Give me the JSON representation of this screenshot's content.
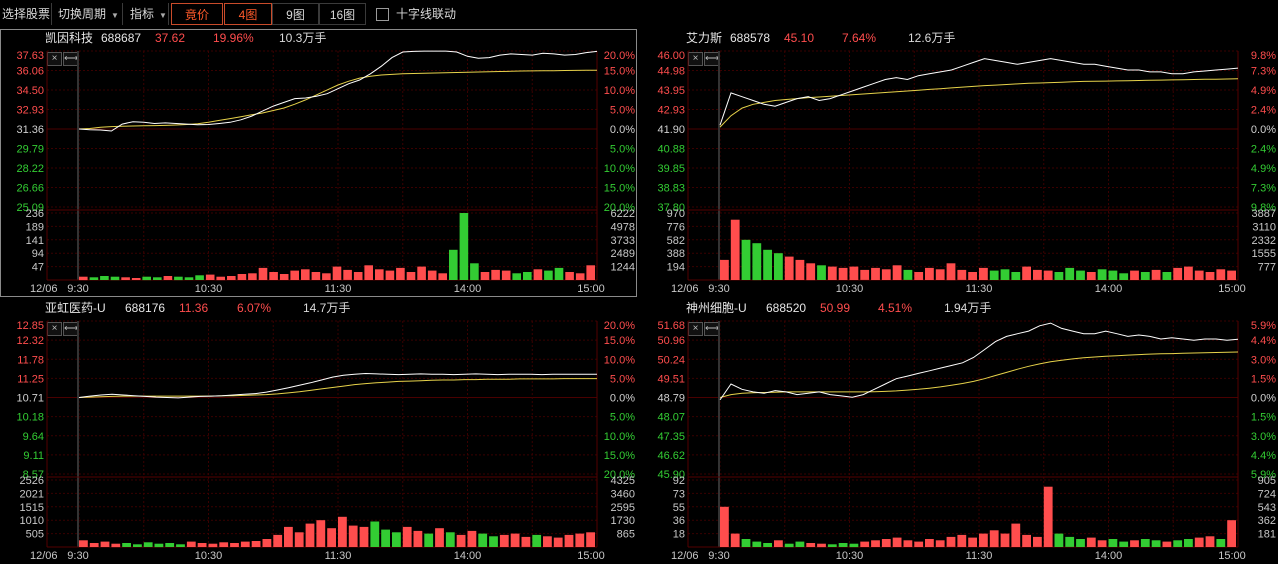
{
  "toolbar": {
    "select_stock": "选择股票",
    "switch_period": "切换周期",
    "indicator": "指标",
    "auction": "竟价",
    "grid4": "4图",
    "grid9": "9图",
    "grid16": "16图",
    "crosshair": "十字线联动"
  },
  "colors": {
    "up": "#ff4d4d",
    "down": "#33cc33",
    "price_line": "#ffffff",
    "avg_line": "#e6d24a",
    "grid": "#3a0000"
  },
  "panels": [
    {
      "name": "凯因科技",
      "code": "688687",
      "price": "37.62",
      "change": "19.96%",
      "volume": "10.3万手",
      "price_ticks": [
        "37.63",
        "36.06",
        "34.50",
        "32.93",
        "31.36",
        "29.79",
        "28.22",
        "26.66",
        "25.09"
      ],
      "pct_ticks": [
        "20.0%",
        "15.0%",
        "10.0%",
        "5.0%",
        "0.0%",
        "5.0%",
        "10.0%",
        "15.0%",
        "20.0%"
      ],
      "vol_left": [
        "236",
        "189",
        "141",
        "94",
        "47"
      ],
      "vol_right": [
        "6222",
        "4978",
        "3733",
        "2489",
        "1244"
      ],
      "date": "12/06",
      "times": [
        "9:30",
        "10:30",
        "11:30",
        "14:00",
        "15:00"
      ],
      "price_series": [
        31.36,
        31.3,
        31.28,
        31.2,
        31.75,
        31.95,
        31.9,
        31.8,
        31.85,
        31.8,
        31.75,
        31.7,
        31.72,
        31.8,
        31.9,
        32.1,
        32.4,
        32.8,
        33.2,
        33.5,
        33.8,
        33.85,
        34.0,
        34.2,
        34.6,
        35.0,
        35.3,
        35.8,
        36.4,
        37.1,
        37.55,
        37.6,
        37.62,
        37.62,
        37.62,
        37.55,
        37.2,
        37.05,
        37.1,
        37.3,
        37.4,
        37.35,
        37.3,
        37.45,
        37.4,
        37.3,
        37.35,
        37.5,
        37.6
      ],
      "avg_series": [
        31.36,
        31.4,
        31.5,
        31.55,
        31.58,
        31.6,
        31.62,
        31.63,
        31.65,
        31.68,
        31.72,
        31.78,
        31.9,
        32.05,
        32.2,
        32.35,
        32.5,
        32.65,
        32.85,
        33.05,
        33.35,
        33.7,
        34.1,
        34.5,
        34.9,
        35.2,
        35.45,
        35.6,
        35.7,
        35.75,
        35.8,
        35.82,
        35.84,
        35.86,
        35.88,
        35.9,
        35.92,
        35.94,
        35.96,
        35.98,
        36.0,
        36.02,
        36.03,
        36.04,
        36.05,
        36.06,
        36.07,
        36.08,
        36.09
      ],
      "volume_series": [
        5,
        4,
        6,
        5,
        4,
        3,
        5,
        4,
        6,
        5,
        4,
        7,
        8,
        5,
        6,
        9,
        10,
        18,
        12,
        9,
        14,
        16,
        12,
        10,
        20,
        15,
        12,
        22,
        16,
        14,
        18,
        12,
        20,
        14,
        10,
        45,
        100,
        25,
        12,
        15,
        14,
        10,
        12,
        16,
        14,
        18,
        12,
        10,
        22
      ]
    },
    {
      "name": "艾力斯",
      "code": "688578",
      "price": "45.10",
      "change": "7.64%",
      "volume": "12.6万手",
      "price_ticks": [
        "46.00",
        "44.98",
        "43.95",
        "42.93",
        "41.90",
        "40.88",
        "39.85",
        "38.83",
        "37.80"
      ],
      "pct_ticks": [
        "9.8%",
        "7.3%",
        "4.9%",
        "2.4%",
        "0.0%",
        "2.4%",
        "4.9%",
        "7.3%",
        "9.8%"
      ],
      "vol_left": [
        "970",
        "776",
        "582",
        "388",
        "194"
      ],
      "vol_right": [
        "3887",
        "3110",
        "2332",
        "1555",
        "777"
      ],
      "date": "12/06",
      "times": [
        "9:30",
        "10:30",
        "11:30",
        "14:00",
        "15:00"
      ],
      "price_series": [
        42.1,
        43.8,
        43.6,
        43.4,
        43.2,
        43.1,
        43.3,
        43.5,
        43.6,
        43.4,
        43.5,
        43.7,
        43.9,
        44.1,
        44.3,
        44.5,
        44.6,
        44.5,
        44.7,
        44.8,
        44.9,
        45.0,
        45.2,
        45.4,
        45.6,
        45.5,
        45.4,
        45.3,
        45.4,
        45.5,
        45.6,
        45.5,
        45.4,
        45.3,
        45.3,
        45.2,
        45.1,
        45.0,
        45.0,
        44.9,
        44.9,
        44.8,
        44.8,
        44.9,
        44.95,
        45.0,
        45.05,
        45.1
      ],
      "avg_series": [
        42.0,
        42.6,
        43.0,
        43.2,
        43.3,
        43.4,
        43.45,
        43.5,
        43.55,
        43.58,
        43.62,
        43.66,
        43.7,
        43.74,
        43.78,
        43.82,
        43.86,
        43.9,
        43.94,
        43.98,
        44.02,
        44.06,
        44.1,
        44.14,
        44.18,
        44.21,
        44.24,
        44.27,
        44.3,
        44.32,
        44.34,
        44.36,
        44.38,
        44.4,
        44.41,
        44.42,
        44.43,
        44.44,
        44.45,
        44.46,
        44.47,
        44.48,
        44.49,
        44.5,
        44.51,
        44.52,
        44.53,
        44.54
      ],
      "volume_series": [
        30,
        90,
        60,
        55,
        45,
        40,
        35,
        30,
        25,
        22,
        20,
        18,
        20,
        15,
        18,
        16,
        22,
        15,
        12,
        18,
        16,
        25,
        15,
        12,
        18,
        14,
        16,
        12,
        20,
        15,
        14,
        12,
        18,
        14,
        12,
        16,
        14,
        10,
        14,
        12,
        15,
        12,
        18,
        20,
        14,
        12,
        16,
        14
      ]
    },
    {
      "name": "亚虹医药-U",
      "code": "688176",
      "price": "11.36",
      "change": "6.07%",
      "volume": "14.7万手",
      "price_ticks": [
        "12.85",
        "12.32",
        "11.78",
        "11.25",
        "10.71",
        "10.18",
        "9.64",
        "9.11",
        "8.57"
      ],
      "pct_ticks": [
        "20.0%",
        "15.0%",
        "10.0%",
        "5.0%",
        "0.0%",
        "5.0%",
        "10.0%",
        "15.0%",
        "20.0%"
      ],
      "vol_left": [
        "2526",
        "2021",
        "1515",
        "1010",
        "505"
      ],
      "vol_right": [
        "4325",
        "3460",
        "2595",
        "1730",
        "865"
      ],
      "date": "12/06",
      "times": [
        "9:30",
        "10:30",
        "11:30",
        "14:00",
        "15:00"
      ],
      "price_series": [
        10.71,
        10.75,
        10.78,
        10.8,
        10.78,
        10.76,
        10.74,
        10.72,
        10.71,
        10.7,
        10.72,
        10.74,
        10.75,
        10.76,
        10.78,
        10.8,
        10.82,
        10.86,
        10.92,
        10.98,
        11.05,
        11.12,
        11.2,
        11.28,
        11.33,
        11.36,
        11.38,
        11.37,
        11.36,
        11.35,
        11.36,
        11.37,
        11.36,
        11.36,
        11.35,
        11.36,
        11.37,
        11.36,
        11.35,
        11.36,
        11.36,
        11.36,
        11.35,
        11.36,
        11.36,
        11.36,
        11.36,
        11.36
      ],
      "avg_series": [
        10.71,
        10.72,
        10.73,
        10.74,
        10.75,
        10.75,
        10.75,
        10.75,
        10.75,
        10.75,
        10.75,
        10.75,
        10.75,
        10.76,
        10.76,
        10.77,
        10.78,
        10.79,
        10.81,
        10.84,
        10.87,
        10.91,
        10.95,
        10.99,
        11.03,
        11.07,
        11.1,
        11.12,
        11.14,
        11.16,
        11.17,
        11.18,
        11.19,
        11.2,
        11.2,
        11.21,
        11.21,
        11.22,
        11.22,
        11.22,
        11.23,
        11.23,
        11.23,
        11.23,
        11.24,
        11.24,
        11.24,
        11.24
      ],
      "volume_series": [
        10,
        6,
        8,
        5,
        6,
        4,
        7,
        5,
        6,
        4,
        8,
        6,
        5,
        7,
        6,
        8,
        9,
        12,
        18,
        30,
        22,
        35,
        40,
        28,
        45,
        32,
        30,
        38,
        26,
        22,
        30,
        24,
        20,
        28,
        22,
        18,
        24,
        20,
        16,
        18,
        20,
        15,
        18,
        16,
        14,
        18,
        20,
        22
      ]
    },
    {
      "name": "神州细胞-U",
      "code": "688520",
      "price": "50.99",
      "change": "4.51%",
      "volume": "1.94万手",
      "price_ticks": [
        "51.68",
        "50.96",
        "50.24",
        "49.51",
        "48.79",
        "48.07",
        "47.35",
        "46.62",
        "45.90"
      ],
      "pct_ticks": [
        "5.9%",
        "4.4%",
        "3.0%",
        "1.5%",
        "0.0%",
        "1.5%",
        "3.0%",
        "4.4%",
        "5.9%"
      ],
      "vol_left": [
        "92",
        "73",
        "55",
        "36",
        "18"
      ],
      "vol_right": [
        "905",
        "724",
        "543",
        "362",
        "181"
      ],
      "date": "12/06",
      "times": [
        "9:30",
        "10:30",
        "11:30",
        "14:00",
        "15:00"
      ],
      "price_series": [
        48.7,
        49.3,
        49.1,
        49.0,
        48.95,
        49.05,
        49.0,
        48.9,
        48.95,
        49.0,
        48.9,
        48.85,
        48.8,
        48.9,
        49.1,
        49.3,
        49.5,
        49.6,
        49.7,
        49.8,
        49.9,
        50.0,
        50.1,
        50.3,
        50.6,
        50.9,
        51.1,
        51.2,
        51.3,
        51.5,
        51.6,
        51.4,
        51.3,
        51.2,
        51.2,
        51.3,
        51.2,
        51.1,
        51.15,
        51.1,
        51.0,
        51.05,
        51.0,
        50.95,
        51.0,
        51.0,
        50.95,
        50.99
      ],
      "avg_series": [
        48.79,
        48.9,
        48.95,
        48.97,
        48.98,
        48.99,
        49.0,
        49.0,
        49.0,
        49.0,
        49.0,
        49.0,
        49.0,
        49.0,
        49.01,
        49.02,
        49.04,
        49.07,
        49.1,
        49.14,
        49.19,
        49.25,
        49.32,
        49.4,
        49.5,
        49.62,
        49.74,
        49.86,
        49.97,
        50.06,
        50.14,
        50.2,
        50.25,
        50.29,
        50.32,
        50.35,
        50.37,
        50.39,
        50.41,
        50.43,
        50.44,
        50.45,
        50.46,
        50.47,
        50.48,
        50.49,
        50.5,
        50.51
      ],
      "volume_series": [
        60,
        20,
        12,
        8,
        6,
        10,
        5,
        8,
        6,
        5,
        4,
        6,
        5,
        8,
        10,
        12,
        14,
        10,
        8,
        12,
        10,
        15,
        18,
        14,
        20,
        25,
        20,
        35,
        18,
        15,
        90,
        20,
        15,
        12,
        14,
        10,
        12,
        8,
        10,
        12,
        10,
        8,
        10,
        12,
        14,
        16,
        12,
        40
      ]
    }
  ]
}
